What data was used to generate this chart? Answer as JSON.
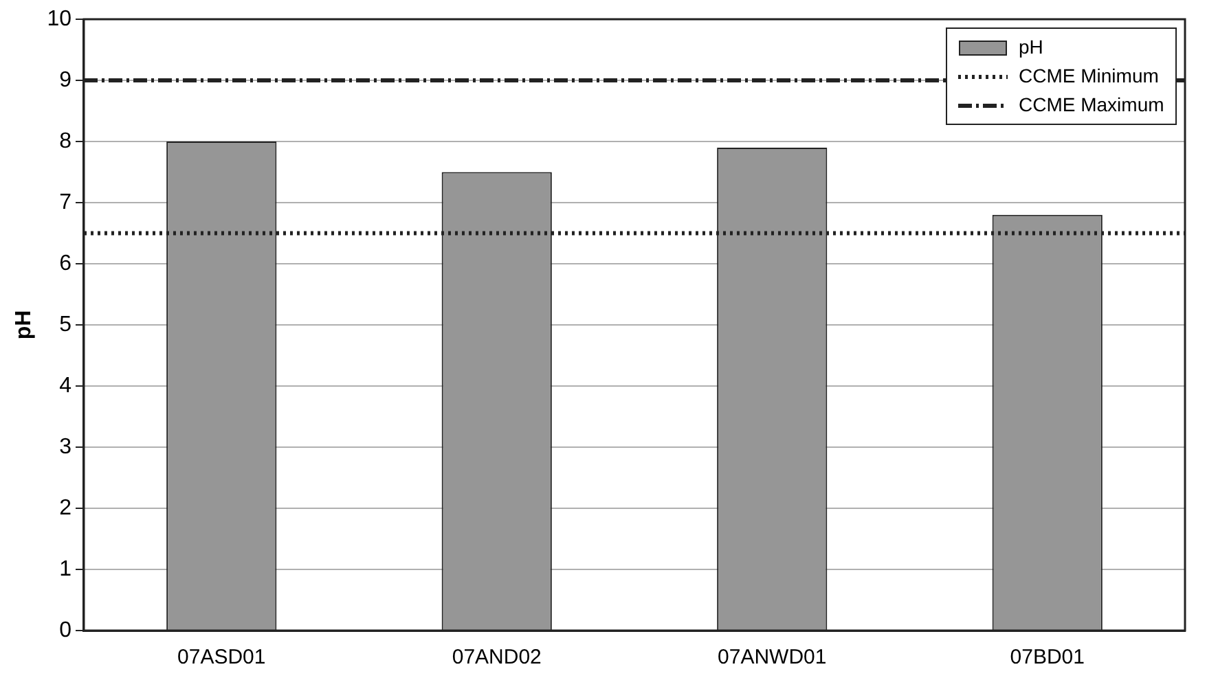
{
  "chart_data": {
    "type": "bar",
    "ylabel": "pH",
    "categories": [
      "07ASD01",
      "07AND02",
      "07ANWD01",
      "07BD01"
    ],
    "series": [
      {
        "name": "pH",
        "color": "#969696",
        "values": [
          8.0,
          7.5,
          7.9,
          6.8
        ]
      }
    ],
    "ylim": [
      0,
      10
    ],
    "yticks": [
      0,
      1,
      2,
      3,
      4,
      5,
      6,
      7,
      8,
      9,
      10
    ],
    "grid": "y",
    "legend": "top right",
    "ref_lines": [
      {
        "axis": "y",
        "value": 6.5,
        "label": "CCME Minimum",
        "color": "#222222",
        "line_style": "dotted"
      },
      {
        "axis": "y",
        "value": 9,
        "label": "CCME Maximum",
        "color": "#222222",
        "line_style": "dashdot"
      }
    ]
  }
}
